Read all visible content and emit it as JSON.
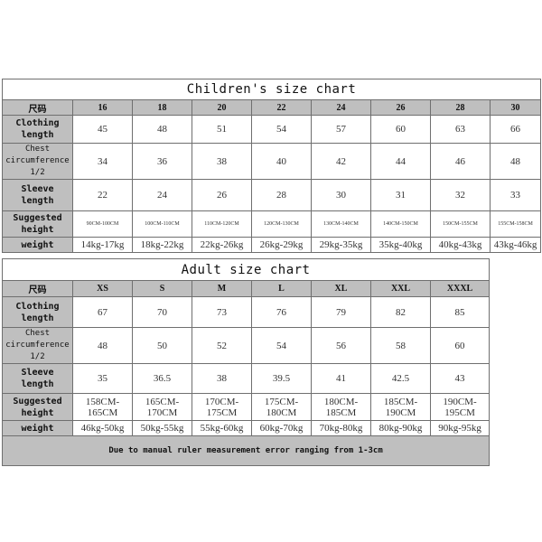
{
  "children": {
    "title": "Children's size chart",
    "size_label": "尺码",
    "sizes": [
      "16",
      "18",
      "20",
      "22",
      "24",
      "26",
      "28",
      "30"
    ],
    "rows": [
      {
        "label": "Clothing length",
        "values": [
          "45",
          "48",
          "51",
          "54",
          "57",
          "60",
          "63",
          "66"
        ]
      },
      {
        "label": "Chest circumference 1/2",
        "values": [
          "34",
          "36",
          "38",
          "40",
          "42",
          "44",
          "46",
          "48"
        ]
      },
      {
        "label": "Sleeve length",
        "values": [
          "22",
          "24",
          "26",
          "28",
          "30",
          "31",
          "32",
          "33"
        ]
      },
      {
        "label": "Suggested height",
        "values": [
          "90CM-100CM",
          "100CM-110CM",
          "110CM-120CM",
          "120CM-130CM",
          "130CM-140CM",
          "140CM-150CM",
          "150CM-155CM",
          "155CM-158CM"
        ]
      },
      {
        "label": "weight",
        "values": [
          "14kg-17kg",
          "18kg-22kg",
          "22kg-26kg",
          "26kg-29kg",
          "29kg-35kg",
          "35kg-40kg",
          "40kg-43kg",
          "43kg-46kg"
        ]
      }
    ]
  },
  "adult": {
    "title": "Adult size chart",
    "size_label": "尺码",
    "sizes": [
      "XS",
      "S",
      "M",
      "L",
      "XL",
      "XXL",
      "XXXL"
    ],
    "rows": [
      {
        "label": "Clothing length",
        "values": [
          "67",
          "70",
          "73",
          "76",
          "79",
          "82",
          "85"
        ]
      },
      {
        "label": "Chest circumference 1/2",
        "values": [
          "48",
          "50",
          "52",
          "54",
          "56",
          "58",
          "60"
        ]
      },
      {
        "label": "Sleeve length",
        "values": [
          "35",
          "36.5",
          "38",
          "39.5",
          "41",
          "42.5",
          "43"
        ]
      },
      {
        "label": "Suggested height",
        "values": [
          "158CM-165CM",
          "165CM-170CM",
          "170CM-175CM",
          "175CM-180CM",
          "180CM-185CM",
          "185CM-190CM",
          "190CM-195CM"
        ]
      },
      {
        "label": "weight",
        "values": [
          "46kg-50kg",
          "50kg-55kg",
          "55kg-60kg",
          "60kg-70kg",
          "70kg-80kg",
          "80kg-90kg",
          "90kg-95kg"
        ]
      }
    ],
    "note": "Due to manual ruler measurement error ranging from 1-3cm"
  }
}
